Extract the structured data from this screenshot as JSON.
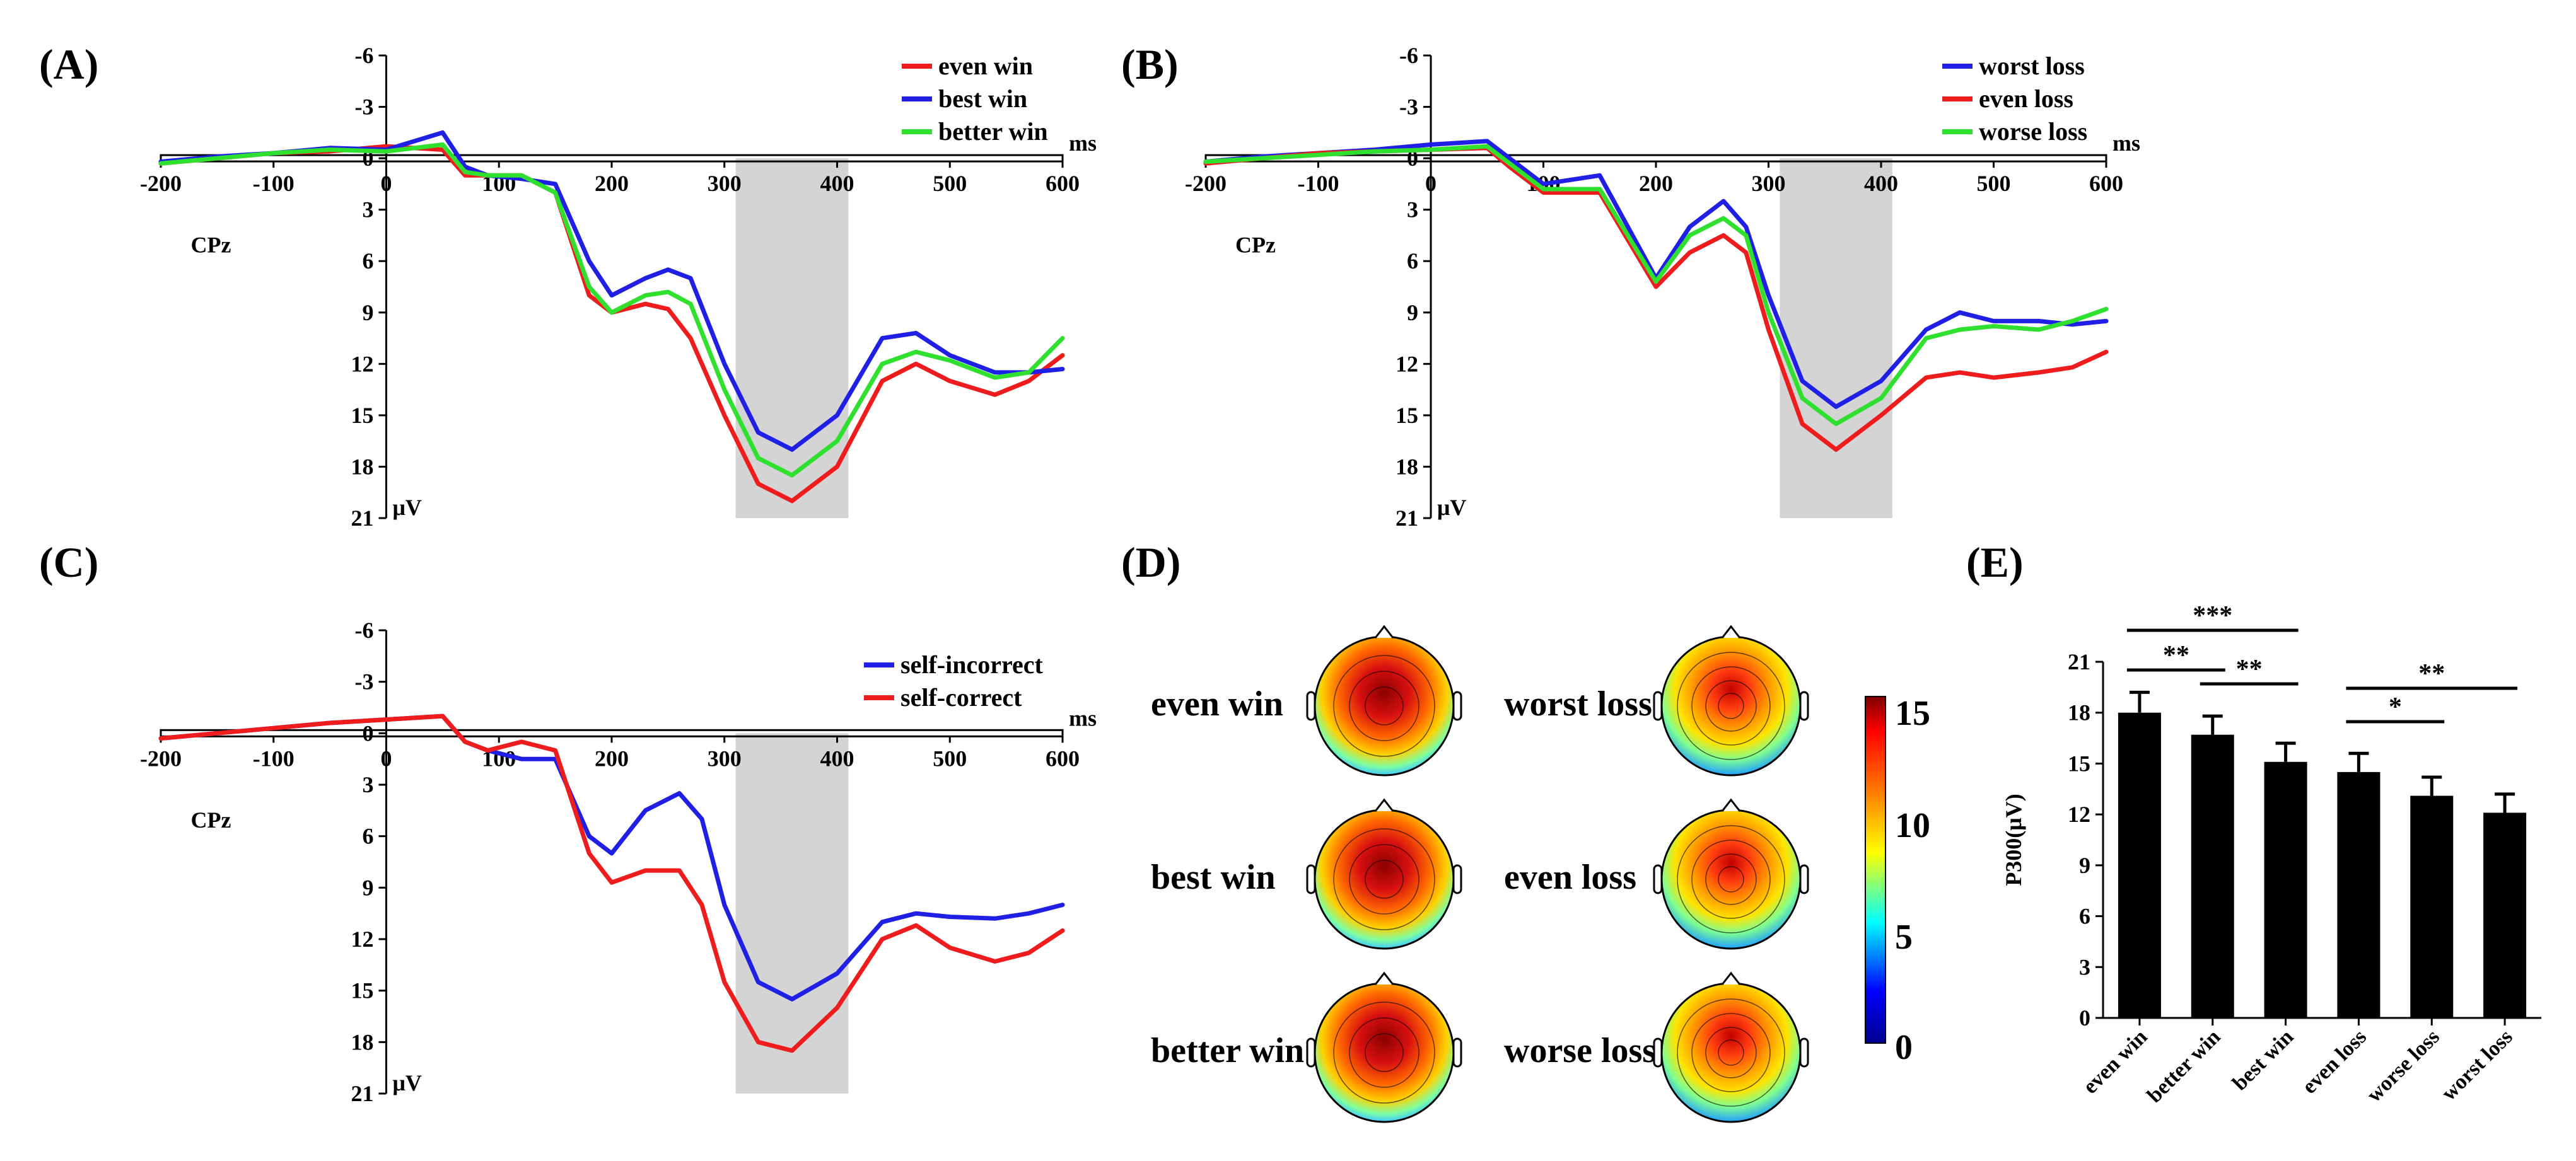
{
  "figure_labels": {
    "a": "(A)",
    "b": "(B)",
    "c": "(C)",
    "d": "(D)",
    "e": "(E)"
  },
  "erp": {
    "channel": "CPz",
    "x_unit": "ms",
    "y_unit": "μV",
    "x_ticks": [
      "-200",
      "-100",
      "0",
      "100",
      "200",
      "300",
      "400",
      "500",
      "600"
    ],
    "y_ticks": [
      "-6",
      "-3",
      "0",
      "3",
      "6",
      "9",
      "12",
      "15",
      "18",
      "21"
    ],
    "window_ms": [
      310,
      410
    ]
  },
  "topo": {
    "left_labels": [
      "even win",
      "best win",
      "better win"
    ],
    "right_labels": [
      "worst loss",
      "even loss",
      "worse loss"
    ],
    "colorbar_ticks": [
      "15",
      "10",
      "5",
      "0"
    ]
  },
  "colors": {
    "red": "#ee1c1c",
    "blue": "#1f1fe6",
    "green": "#2fe02f"
  },
  "chart_data": [
    {
      "type": "line",
      "panel": "A",
      "title": "CPz",
      "xlabel": "ms",
      "ylabel": "μV",
      "xlim": [
        -200,
        600
      ],
      "ylim": [
        -6,
        21
      ],
      "y_axis": "inverted (negative up)",
      "shaded_window_ms": [
        310,
        410
      ],
      "series": [
        {
          "name": "even win",
          "color": "#ee1c1c",
          "x": [
            -200,
            -150,
            -100,
            -50,
            0,
            50,
            70,
            90,
            120,
            150,
            180,
            200,
            230,
            250,
            270,
            300,
            330,
            360,
            400,
            440,
            470,
            500,
            540,
            570,
            600
          ],
          "y": [
            0.3,
            0.0,
            -0.3,
            -0.4,
            -0.7,
            -0.5,
            1,
            1,
            1,
            2,
            8,
            9,
            8.5,
            8.8,
            10.5,
            15,
            19,
            20,
            18,
            13,
            12,
            13,
            13.8,
            13,
            11.5
          ]
        },
        {
          "name": "best win",
          "color": "#1f1fe6",
          "x": [
            -200,
            -150,
            -100,
            -50,
            0,
            50,
            70,
            90,
            120,
            150,
            180,
            200,
            230,
            250,
            270,
            300,
            330,
            360,
            400,
            440,
            470,
            500,
            540,
            570,
            600
          ],
          "y": [
            0.2,
            -0.1,
            -0.3,
            -0.6,
            -0.5,
            -1.5,
            0.5,
            1,
            1.2,
            1.5,
            6,
            8,
            7,
            6.5,
            7,
            12,
            16,
            17,
            15,
            10.5,
            10.2,
            11.5,
            12.5,
            12.5,
            12.3
          ]
        },
        {
          "name": "better win",
          "color": "#2fe02f",
          "x": [
            -200,
            -150,
            -100,
            -50,
            0,
            50,
            70,
            90,
            120,
            150,
            180,
            200,
            230,
            250,
            270,
            300,
            330,
            360,
            400,
            440,
            470,
            500,
            540,
            570,
            600
          ],
          "y": [
            0.3,
            0.0,
            -0.3,
            -0.5,
            -0.4,
            -0.8,
            0.8,
            1,
            1,
            2,
            7.5,
            9,
            8,
            7.8,
            8.5,
            13.5,
            17.5,
            18.5,
            16.5,
            12,
            11.3,
            11.8,
            12.8,
            12.5,
            10.5
          ]
        }
      ]
    },
    {
      "type": "line",
      "panel": "B",
      "title": "CPz",
      "xlabel": "ms",
      "ylabel": "μV",
      "xlim": [
        -200,
        600
      ],
      "ylim": [
        -6,
        21
      ],
      "y_axis": "inverted (negative up)",
      "shaded_window_ms": [
        310,
        410
      ],
      "series": [
        {
          "name": "worst loss",
          "color": "#1f1fe6",
          "x": [
            -200,
            -150,
            -100,
            -50,
            0,
            50,
            70,
            100,
            150,
            200,
            230,
            260,
            280,
            300,
            330,
            360,
            400,
            440,
            470,
            500,
            540,
            570,
            600
          ],
          "y": [
            0.2,
            -0.1,
            -0.3,
            -0.5,
            -0.8,
            -1,
            0,
            1.5,
            1,
            7,
            4,
            2.5,
            4,
            8,
            13,
            14.5,
            13,
            10,
            9,
            9.5,
            9.5,
            9.7,
            9.5
          ]
        },
        {
          "name": "even loss",
          "color": "#ee1c1c",
          "x": [
            -200,
            -150,
            -100,
            -50,
            0,
            50,
            70,
            100,
            150,
            200,
            230,
            260,
            280,
            300,
            330,
            360,
            400,
            440,
            470,
            500,
            540,
            570,
            600
          ],
          "y": [
            0.3,
            0.0,
            -0.3,
            -0.4,
            -0.5,
            -0.6,
            0.5,
            2,
            2,
            7.5,
            5.5,
            4.5,
            5.5,
            10,
            15.5,
            17,
            15,
            12.8,
            12.5,
            12.8,
            12.5,
            12.2,
            11.3
          ]
        },
        {
          "name": "worse loss",
          "color": "#2fe02f",
          "x": [
            -200,
            -150,
            -100,
            -50,
            0,
            50,
            70,
            100,
            150,
            200,
            230,
            260,
            280,
            300,
            330,
            360,
            400,
            440,
            470,
            500,
            540,
            570,
            600
          ],
          "y": [
            0.2,
            0.0,
            -0.2,
            -0.4,
            -0.5,
            -0.7,
            0.3,
            1.8,
            1.8,
            7.2,
            4.5,
            3.5,
            4.5,
            9,
            14,
            15.5,
            14,
            10.5,
            10,
            9.8,
            10,
            9.5,
            8.8
          ]
        }
      ]
    },
    {
      "type": "line",
      "panel": "C",
      "title": "CPz",
      "xlabel": "ms",
      "ylabel": "μV",
      "xlim": [
        -200,
        600
      ],
      "ylim": [
        -6,
        21
      ],
      "y_axis": "inverted (negative up)",
      "shaded_window_ms": [
        310,
        410
      ],
      "series": [
        {
          "name": "self-incorrect",
          "color": "#1f1fe6",
          "x": [
            -200,
            -150,
            -100,
            -50,
            0,
            50,
            70,
            90,
            120,
            150,
            180,
            200,
            230,
            260,
            280,
            300,
            330,
            360,
            400,
            440,
            470,
            500,
            540,
            570,
            600
          ],
          "y": [
            0.3,
            0.0,
            -0.3,
            -0.6,
            -0.8,
            -1,
            0.5,
            1,
            1.5,
            1.5,
            6,
            7,
            4.5,
            3.5,
            5,
            10,
            14.5,
            15.5,
            14,
            11,
            10.5,
            10.7,
            10.8,
            10.5,
            10
          ]
        },
        {
          "name": "self-correct",
          "color": "#ee1c1c",
          "x": [
            -200,
            -150,
            -100,
            -50,
            0,
            50,
            70,
            90,
            120,
            150,
            180,
            200,
            230,
            260,
            280,
            300,
            330,
            360,
            400,
            440,
            470,
            500,
            540,
            570,
            600
          ],
          "y": [
            0.3,
            0.0,
            -0.3,
            -0.6,
            -0.8,
            -1,
            0.5,
            1,
            0.5,
            1,
            7,
            8.7,
            8,
            8,
            10,
            14.5,
            18,
            18.5,
            16,
            12,
            11.2,
            12.5,
            13.3,
            12.8,
            11.5
          ]
        }
      ]
    },
    {
      "type": "bar",
      "panel": "E",
      "ylabel": "P300(μV)",
      "ylim": [
        0,
        21
      ],
      "y_ticks": [
        0,
        3,
        6,
        9,
        12,
        15,
        18,
        21
      ],
      "categories": [
        "even win",
        "better win",
        "best win",
        "even loss",
        "worse loss",
        "worst loss"
      ],
      "values": [
        18.0,
        16.7,
        15.1,
        14.5,
        13.1,
        12.1
      ],
      "errors": [
        1.2,
        1.1,
        1.1,
        1.1,
        1.1,
        1.1
      ],
      "comparisons": [
        {
          "from": "even win",
          "to": "better win",
          "label": "**"
        },
        {
          "from": "better win",
          "to": "best win",
          "label": "**"
        },
        {
          "from": "even win",
          "to": "best win",
          "label": "***"
        },
        {
          "from": "even loss",
          "to": "worse loss",
          "label": "*"
        },
        {
          "from": "even loss",
          "to": "worst loss",
          "label": "**"
        }
      ]
    }
  ]
}
